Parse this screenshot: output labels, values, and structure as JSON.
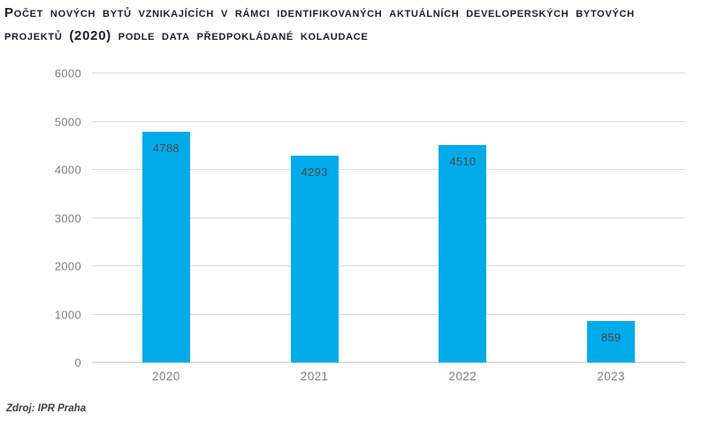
{
  "header": {
    "title_line1": "Počet nových bytů vznikajících v rámci identifikovaných aktuálních developerských bytových",
    "title_line2": "projektů (2020) podle data předpokládané kolaudace"
  },
  "source": {
    "label": "Zdroj: IPR Praha"
  },
  "colors": {
    "bar": "#00abea",
    "grid": "#dadada",
    "baseline": "#c8c8c8",
    "axis_text": "#7d7d85",
    "value_text": "#474750",
    "title_text": "#1c1c2e",
    "source_text": "#3f3f46"
  },
  "chart_data": {
    "type": "bar",
    "title": "Počet nových bytů vznikajících v rámci identifikovaných aktuálních developerských bytových projektů (2020) podle data předpokládané kolaudace",
    "categories": [
      "2020",
      "2021",
      "2022",
      "2023"
    ],
    "values": [
      4788,
      4293,
      4510,
      859
    ],
    "value_labels": [
      "4788",
      "4293",
      "4510",
      "859"
    ],
    "xlabel": "",
    "ylabel": "",
    "ylim": [
      0,
      6000
    ],
    "yticks": [
      0,
      1000,
      2000,
      3000,
      4000,
      5000,
      6000
    ],
    "grid": true,
    "legend": false,
    "bar_color": "#00abea",
    "source": "Zdroj: IPR Praha"
  }
}
